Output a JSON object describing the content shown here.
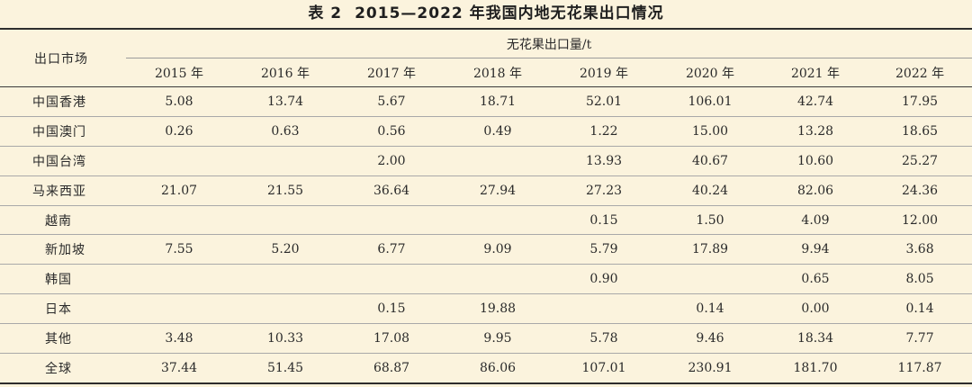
{
  "title": {
    "number": "表 2",
    "text": "2015—2022 年我国内地无花果出口情况"
  },
  "header": {
    "market_label": "出口市场",
    "unit_label": "无花果出口量/t",
    "years": [
      "2015 年",
      "2016 年",
      "2017 年",
      "2018 年",
      "2019 年",
      "2020 年",
      "2021 年",
      "2022 年"
    ]
  },
  "rows": [
    {
      "market": "中国香港",
      "values": [
        "5.08",
        "13.74",
        "5.67",
        "18.71",
        "52.01",
        "106.01",
        "42.74",
        "17.95"
      ]
    },
    {
      "market": "中国澳门",
      "values": [
        "0.26",
        "0.63",
        "0.56",
        "0.49",
        "1.22",
        "15.00",
        "13.28",
        "18.65"
      ]
    },
    {
      "market": "中国台湾",
      "values": [
        "",
        "",
        "2.00",
        "",
        "13.93",
        "40.67",
        "10.60",
        "25.27"
      ]
    },
    {
      "market": "马来西亚",
      "values": [
        "21.07",
        "21.55",
        "36.64",
        "27.94",
        "27.23",
        "40.24",
        "82.06",
        "24.36"
      ]
    },
    {
      "market": "越南",
      "values": [
        "",
        "",
        "",
        "",
        "0.15",
        "1.50",
        "4.09",
        "12.00"
      ]
    },
    {
      "market": "新加坡",
      "values": [
        "7.55",
        "5.20",
        "6.77",
        "9.09",
        "5.79",
        "17.89",
        "9.94",
        "3.68"
      ]
    },
    {
      "market": "韩国",
      "values": [
        "",
        "",
        "",
        "",
        "0.90",
        "",
        "0.65",
        "8.05"
      ]
    },
    {
      "market": "日本",
      "values": [
        "",
        "",
        "0.15",
        "19.88",
        "",
        "0.14",
        "0.00",
        "0.14"
      ]
    },
    {
      "market": "其他",
      "values": [
        "3.48",
        "10.33",
        "17.08",
        "9.95",
        "5.78",
        "9.46",
        "18.34",
        "7.77"
      ]
    },
    {
      "market": "全球",
      "values": [
        "37.44",
        "51.45",
        "68.87",
        "86.06",
        "107.01",
        "230.91",
        "181.70",
        "117.87"
      ]
    }
  ]
}
